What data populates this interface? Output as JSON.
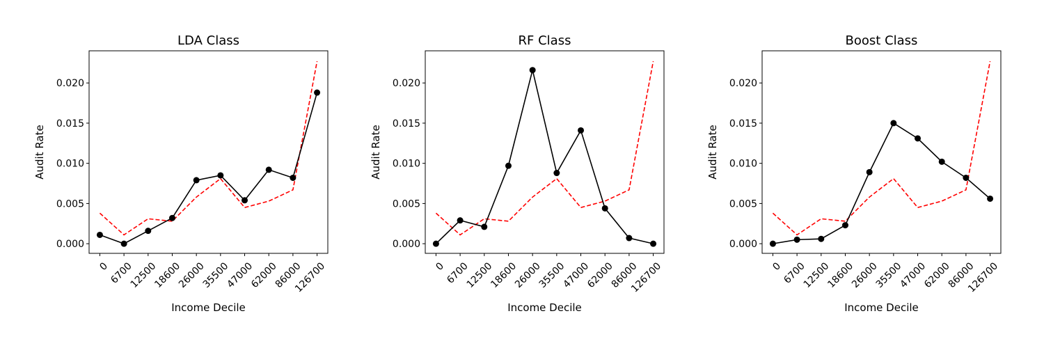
{
  "chart_data": [
    {
      "type": "line",
      "title": "LDA Class",
      "xlabel": "Income Decile",
      "ylabel": "Audit Rate",
      "categories": [
        "0",
        "6700",
        "12500",
        "18600",
        "26000",
        "35500",
        "47000",
        "62000",
        "86000",
        "126700"
      ],
      "ylim": [
        -0.0012,
        0.024
      ],
      "yticks": [
        "0.000",
        "0.005",
        "0.010",
        "0.015",
        "0.020"
      ],
      "grid": false,
      "series": [
        {
          "style": "solid-markers",
          "color": "#000000",
          "values": [
            0.0011,
            0.0,
            0.0016,
            0.0032,
            0.0079,
            0.0085,
            0.0054,
            0.0092,
            0.0082,
            0.0188
          ]
        },
        {
          "style": "dashed",
          "color": "#ff0000",
          "values": [
            0.0038,
            0.0011,
            0.0031,
            0.0028,
            0.0058,
            0.0081,
            0.0045,
            0.0053,
            0.0067,
            0.0227
          ]
        }
      ]
    },
    {
      "type": "line",
      "title": "RF Class",
      "xlabel": "Income Decile",
      "ylabel": "Audit Rate",
      "categories": [
        "0",
        "6700",
        "12500",
        "18600",
        "26000",
        "35500",
        "47000",
        "62000",
        "86000",
        "126700"
      ],
      "ylim": [
        -0.0012,
        0.024
      ],
      "yticks": [
        "0.000",
        "0.005",
        "0.010",
        "0.015",
        "0.020"
      ],
      "grid": false,
      "series": [
        {
          "style": "solid-markers",
          "color": "#000000",
          "values": [
            0.0,
            0.0029,
            0.0021,
            0.0097,
            0.0216,
            0.0088,
            0.0141,
            0.0044,
            0.0007,
            0.0
          ]
        },
        {
          "style": "dashed",
          "color": "#ff0000",
          "values": [
            0.0038,
            0.0011,
            0.0031,
            0.0028,
            0.0058,
            0.0081,
            0.0045,
            0.0053,
            0.0067,
            0.0227
          ]
        }
      ]
    },
    {
      "type": "line",
      "title": "Boost Class",
      "xlabel": "Income Decile",
      "ylabel": "Audit Rate",
      "categories": [
        "0",
        "6700",
        "12500",
        "18600",
        "26000",
        "35500",
        "47000",
        "62000",
        "86000",
        "126700"
      ],
      "ylim": [
        -0.0012,
        0.024
      ],
      "yticks": [
        "0.000",
        "0.005",
        "0.010",
        "0.015",
        "0.020"
      ],
      "grid": false,
      "series": [
        {
          "style": "solid-markers",
          "color": "#000000",
          "values": [
            0.0,
            0.0005,
            0.0006,
            0.0023,
            0.0089,
            0.015,
            0.0131,
            0.0102,
            0.0082,
            0.0056
          ]
        },
        {
          "style": "dashed",
          "color": "#ff0000",
          "values": [
            0.0038,
            0.0011,
            0.0031,
            0.0028,
            0.0058,
            0.0081,
            0.0045,
            0.0053,
            0.0067,
            0.0227
          ]
        }
      ]
    }
  ]
}
